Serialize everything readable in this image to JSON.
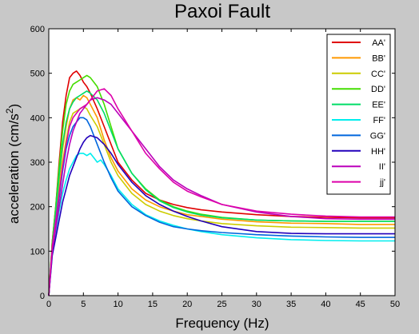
{
  "chart_data": {
    "type": "line",
    "title": "Paxoi Fault",
    "xlabel": "Frequency (Hz)",
    "ylabel": "acceleration (cm/s",
    "ylabel_sup": "2",
    "ylabel_close": ")",
    "xlim": [
      0,
      50
    ],
    "ylim": [
      0,
      600
    ],
    "xticks": [
      0,
      5,
      10,
      15,
      20,
      25,
      30,
      35,
      40,
      45,
      50
    ],
    "yticks": [
      0,
      100,
      200,
      300,
      400,
      500,
      600
    ],
    "grid": false,
    "legend_position": "top-right",
    "series": [
      {
        "name": "AA'",
        "color": "#e00000",
        "x": [
          0,
          0.5,
          1,
          1.5,
          2,
          2.5,
          3,
          3.5,
          4,
          4.5,
          5,
          5.5,
          6,
          7,
          8,
          9,
          10,
          12,
          14,
          16,
          18,
          20,
          22,
          25,
          30,
          35,
          40,
          45,
          50
        ],
        "y": [
          0,
          120,
          200,
          300,
          390,
          450,
          490,
          500,
          505,
          495,
          480,
          470,
          455,
          420,
          380,
          340,
          300,
          260,
          230,
          215,
          205,
          198,
          193,
          188,
          182,
          178,
          176,
          175,
          175
        ]
      },
      {
        "name": "BB'",
        "color": "#ff9900",
        "x": [
          0,
          0.5,
          1,
          1.5,
          2,
          2.5,
          3,
          3.5,
          4,
          4.5,
          5,
          5.5,
          6,
          7,
          8,
          9,
          10,
          12,
          14,
          16,
          18,
          20,
          22,
          25,
          30,
          35,
          40,
          45,
          50
        ],
        "y": [
          0,
          110,
          180,
          260,
          330,
          380,
          420,
          440,
          445,
          440,
          450,
          445,
          430,
          400,
          350,
          310,
          280,
          240,
          215,
          200,
          190,
          182,
          178,
          172,
          166,
          163,
          162,
          160,
          160
        ]
      },
      {
        "name": "CC'",
        "color": "#cccc00",
        "x": [
          0,
          0.5,
          1,
          1.5,
          2,
          2.5,
          3,
          3.5,
          4,
          4.5,
          5,
          5.5,
          6,
          7,
          8,
          9,
          10,
          12,
          14,
          16,
          18,
          20,
          22,
          25,
          30,
          35,
          40,
          45,
          50
        ],
        "y": [
          0,
          100,
          170,
          240,
          300,
          350,
          390,
          410,
          415,
          420,
          425,
          420,
          405,
          380,
          340,
          300,
          270,
          230,
          205,
          190,
          180,
          173,
          168,
          162,
          157,
          154,
          153,
          152,
          152
        ]
      },
      {
        "name": "DD'",
        "color": "#44dd00",
        "x": [
          0,
          0.5,
          1,
          1.5,
          2,
          2.5,
          3,
          3.5,
          4,
          4.5,
          5,
          5.5,
          6,
          7,
          8,
          9,
          10,
          12,
          14,
          16,
          18,
          20,
          22,
          25,
          30,
          35,
          40,
          45,
          50
        ],
        "y": [
          0,
          120,
          200,
          290,
          370,
          430,
          460,
          475,
          480,
          485,
          490,
          495,
          490,
          470,
          430,
          380,
          330,
          275,
          240,
          215,
          200,
          190,
          183,
          176,
          170,
          168,
          167,
          167,
          167
        ]
      },
      {
        "name": "EE'",
        "color": "#00dd66",
        "x": [
          0,
          0.5,
          1,
          1.5,
          2,
          2.5,
          3,
          3.5,
          4,
          4.5,
          5,
          5.5,
          6,
          7,
          8,
          9,
          10,
          12,
          14,
          16,
          18,
          20,
          22,
          25,
          30,
          35,
          40,
          45,
          50
        ],
        "y": [
          0,
          110,
          190,
          270,
          340,
          390,
          420,
          435,
          445,
          450,
          455,
          460,
          455,
          440,
          410,
          370,
          330,
          275,
          238,
          213,
          198,
          188,
          181,
          175,
          170,
          168,
          167,
          167,
          167
        ]
      },
      {
        "name": "FF'",
        "color": "#00eeee",
        "x": [
          0,
          0.5,
          1,
          1.5,
          2,
          2.5,
          3,
          3.5,
          4,
          4.5,
          5,
          5.5,
          6,
          6.5,
          7,
          7.5,
          8,
          9,
          10,
          12,
          14,
          16,
          18,
          20,
          22,
          25,
          30,
          35,
          40,
          45,
          50
        ],
        "y": [
          0,
          90,
          140,
          190,
          230,
          260,
          285,
          300,
          315,
          320,
          320,
          315,
          320,
          310,
          300,
          305,
          295,
          270,
          240,
          205,
          182,
          168,
          158,
          150,
          144,
          137,
          130,
          126,
          124,
          123,
          123
        ]
      },
      {
        "name": "GG'",
        "color": "#0066dd",
        "x": [
          0,
          0.5,
          1,
          1.5,
          2,
          2.5,
          3,
          3.5,
          4,
          4.5,
          5,
          5.5,
          6,
          7,
          8,
          9,
          10,
          12,
          14,
          16,
          18,
          20,
          22,
          25,
          30,
          35,
          40,
          45,
          50
        ],
        "y": [
          0,
          100,
          160,
          220,
          280,
          330,
          360,
          380,
          390,
          400,
          400,
          395,
          380,
          340,
          300,
          265,
          235,
          200,
          180,
          165,
          155,
          150,
          146,
          142,
          137,
          134,
          132,
          131,
          131
        ]
      },
      {
        "name": "HH'",
        "color": "#2200bb",
        "x": [
          0,
          0.5,
          1,
          1.5,
          2,
          2.5,
          3,
          3.5,
          4,
          4.5,
          5,
          5.5,
          6,
          7,
          8,
          9,
          10,
          12,
          14,
          16,
          18,
          20,
          22,
          25,
          30,
          35,
          40,
          45,
          50
        ],
        "y": [
          0,
          90,
          130,
          170,
          210,
          240,
          270,
          290,
          310,
          330,
          345,
          355,
          360,
          355,
          340,
          320,
          295,
          255,
          225,
          205,
          190,
          178,
          168,
          155,
          144,
          140,
          139,
          139,
          139
        ]
      },
      {
        "name": "II'",
        "color": "#bb00bb",
        "x": [
          0,
          0.5,
          1,
          1.5,
          2,
          2.5,
          3,
          3.5,
          4,
          4.5,
          5,
          5.5,
          6,
          7,
          8,
          9,
          10,
          12,
          14,
          16,
          18,
          20,
          22,
          25,
          30,
          35,
          40,
          45,
          50
        ],
        "y": [
          0,
          100,
          150,
          200,
          250,
          300,
          340,
          370,
          390,
          410,
          420,
          430,
          440,
          445,
          440,
          430,
          410,
          370,
          330,
          290,
          260,
          240,
          225,
          205,
          188,
          178,
          173,
          172,
          172
        ]
      },
      {
        "name": "jj'",
        "color": "#dd00aa",
        "x": [
          0,
          0.5,
          1,
          1.5,
          2,
          2.5,
          3,
          3.5,
          4,
          4.5,
          5,
          5.5,
          6,
          7,
          8,
          9,
          10,
          12,
          14,
          16,
          18,
          20,
          22,
          25,
          30,
          35,
          40,
          45,
          50
        ],
        "y": [
          0,
          110,
          170,
          230,
          290,
          340,
          380,
          400,
          410,
          420,
          425,
          430,
          440,
          460,
          465,
          450,
          420,
          370,
          320,
          285,
          255,
          235,
          222,
          205,
          190,
          183,
          179,
          177,
          177
        ]
      }
    ]
  }
}
